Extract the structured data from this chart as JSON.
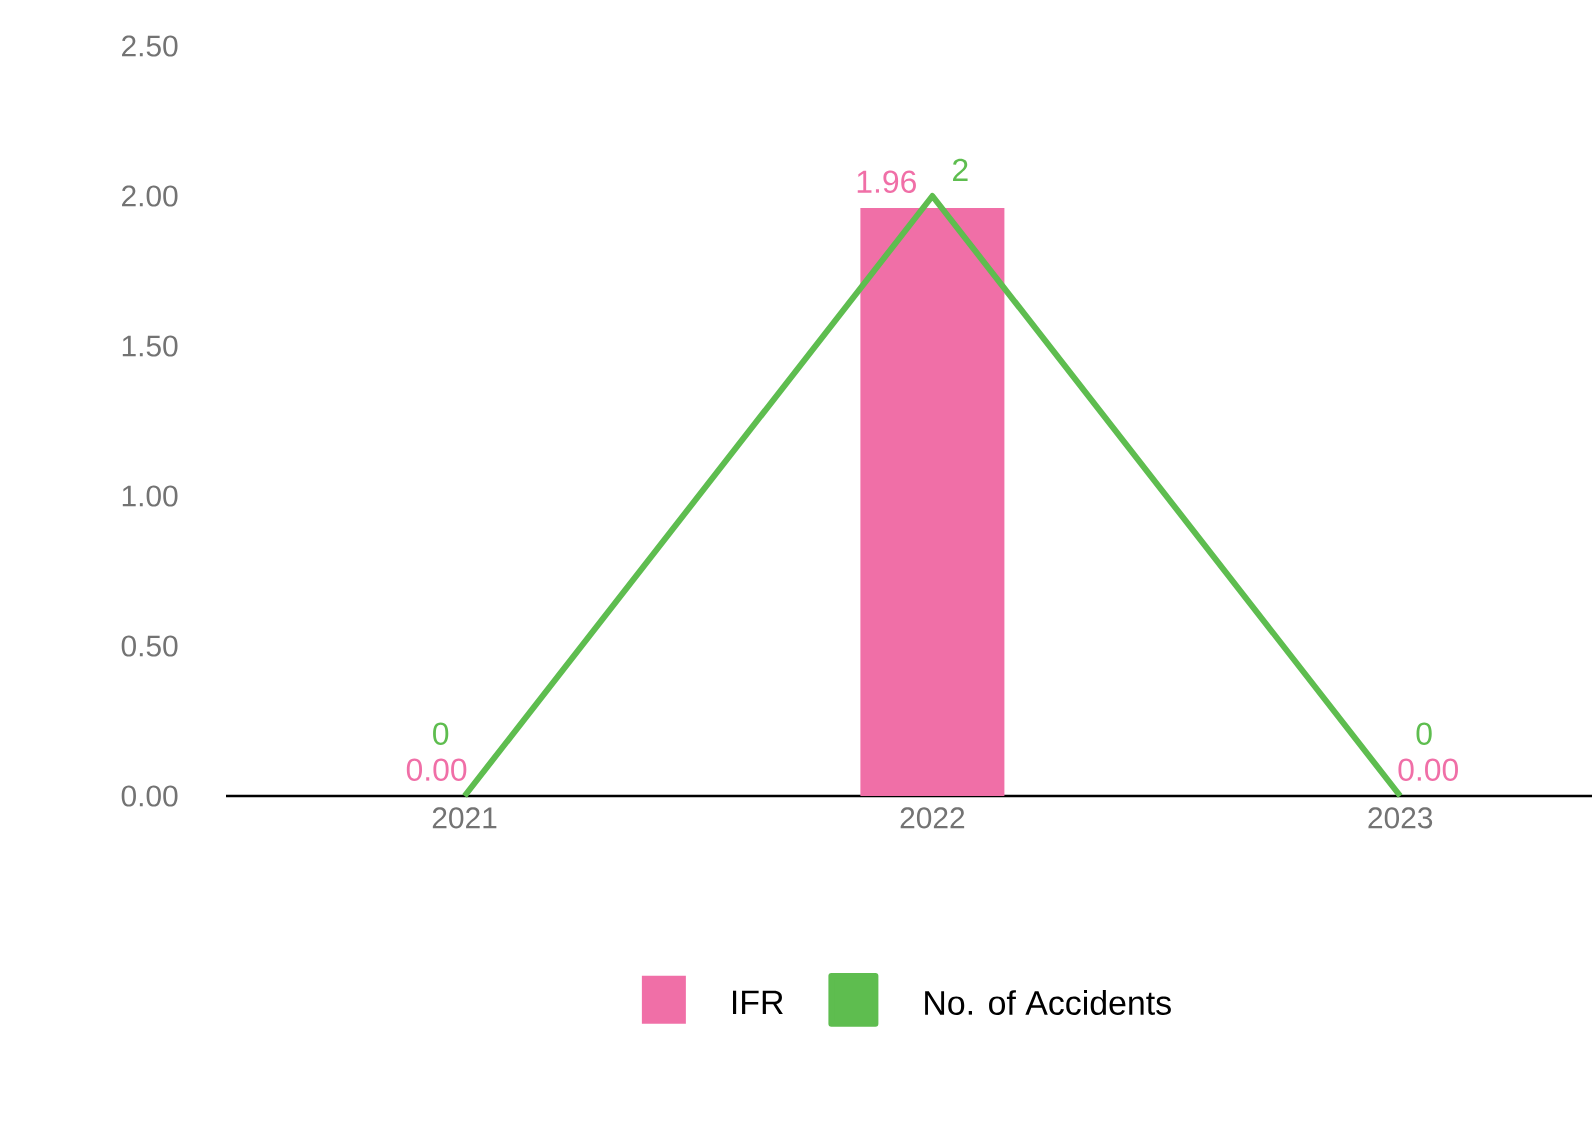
{
  "chart_data": {
    "type": "bar",
    "categories": [
      "2021",
      "2022",
      "2023"
    ],
    "series": [
      {
        "name": "IFR",
        "color": "#f06fa7",
        "values": [
          0,
          1.96,
          0
        ],
        "value_labels": [
          "0.00",
          "1.96",
          "0.00"
        ]
      },
      {
        "name": "No. of Accidents",
        "type": "line",
        "color": "#5ebd4f",
        "values": [
          0,
          2,
          0
        ],
        "value_labels": [
          "0",
          "2",
          "0"
        ]
      }
    ],
    "ylim": [
      0,
      2.5
    ],
    "yticks": [
      {
        "value": 0,
        "label": "0.00"
      },
      {
        "value": 0.5,
        "label": "0.50"
      },
      {
        "value": 1,
        "label": "1.00"
      },
      {
        "value": 1.5,
        "label": "1.50"
      },
      {
        "value": 2,
        "label": "2.00"
      },
      {
        "value": 2.5,
        "label": "2.50"
      }
    ],
    "grid": false,
    "legend": "bottom",
    "marker": "none",
    "line_style": "solid"
  }
}
